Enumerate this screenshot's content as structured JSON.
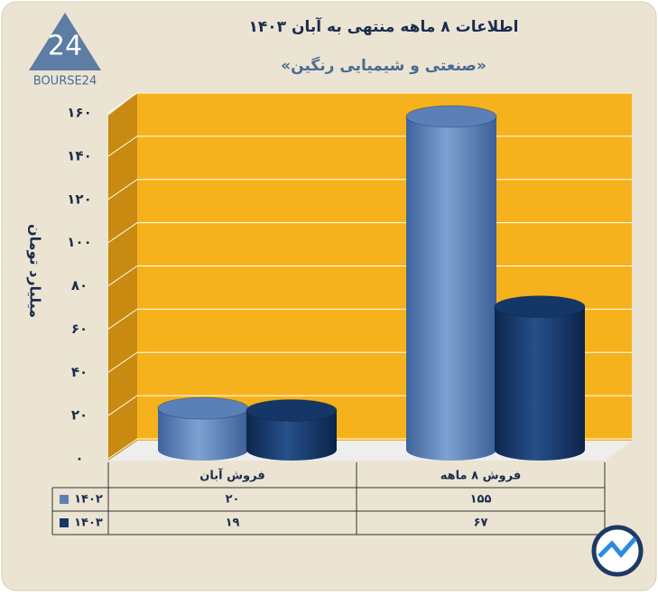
{
  "logo": {
    "mark": "24",
    "name": "BOURSE24"
  },
  "chart_data": {
    "type": "bar",
    "title": "اطلاعات ۸ ماهه منتهی به آبان ۱۴۰۳",
    "subtitle": "«صنعتی و شیمیایی رنگین»",
    "y_label": "میلیارد تومان",
    "categories": [
      "فروش آبان",
      "فروش ۸ ماهه"
    ],
    "series": [
      {
        "name": "۱۴۰۲",
        "color": "#5b80b8",
        "values": [
          20,
          155
        ],
        "value_labels": [
          "۲۰",
          "۱۵۵"
        ]
      },
      {
        "name": "۱۴۰۳",
        "color": "#143768",
        "values": [
          19,
          67
        ],
        "value_labels": [
          "۱۹",
          "۶۷"
        ]
      }
    ],
    "ylim": [
      0,
      160
    ],
    "yticks": [
      {
        "value": 0,
        "label": "۰"
      },
      {
        "value": 20,
        "label": "۲۰"
      },
      {
        "value": 40,
        "label": "۴۰"
      },
      {
        "value": 60,
        "label": "۶۰"
      },
      {
        "value": 80,
        "label": "۸۰"
      },
      {
        "value": 100,
        "label": "۱۰۰"
      },
      {
        "value": 120,
        "label": "۱۲۰"
      },
      {
        "value": 140,
        "label": "۱۴۰"
      },
      {
        "value": 160,
        "label": "۱۶۰"
      }
    ],
    "grid": true
  }
}
